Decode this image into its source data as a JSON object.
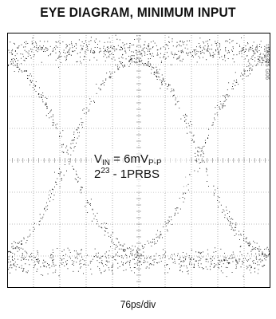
{
  "chart_data": {
    "type": "scatter",
    "title": "EYE DIAGRAM, MINIMUM INPUT",
    "xlabel": "76ps/div",
    "ylabel": "",
    "grid": {
      "x_divisions": 10,
      "y_divisions": 8,
      "show": true
    },
    "annotation": {
      "line1_prefix": "V",
      "line1_sub1": "IN",
      "line1_mid": " = 6mV",
      "line1_sub2": "P-P",
      "line2_prefix": "2",
      "line2_sup": "23",
      "line2_suffix": " - 1PRBS"
    },
    "side_code": "1A9305 G06",
    "eye": {
      "ui_ps": 380,
      "horizontal_divisions": 10,
      "ps_per_div": 76,
      "crossings_div": [
        2.3,
        7.3
      ],
      "top_level_div": 0.55,
      "bottom_level_div": 7.15,
      "band_thickness_div": 0.7
    },
    "colors": {
      "trace": "#000000",
      "grid": "#7a7a7a",
      "frame": "#000000"
    }
  }
}
